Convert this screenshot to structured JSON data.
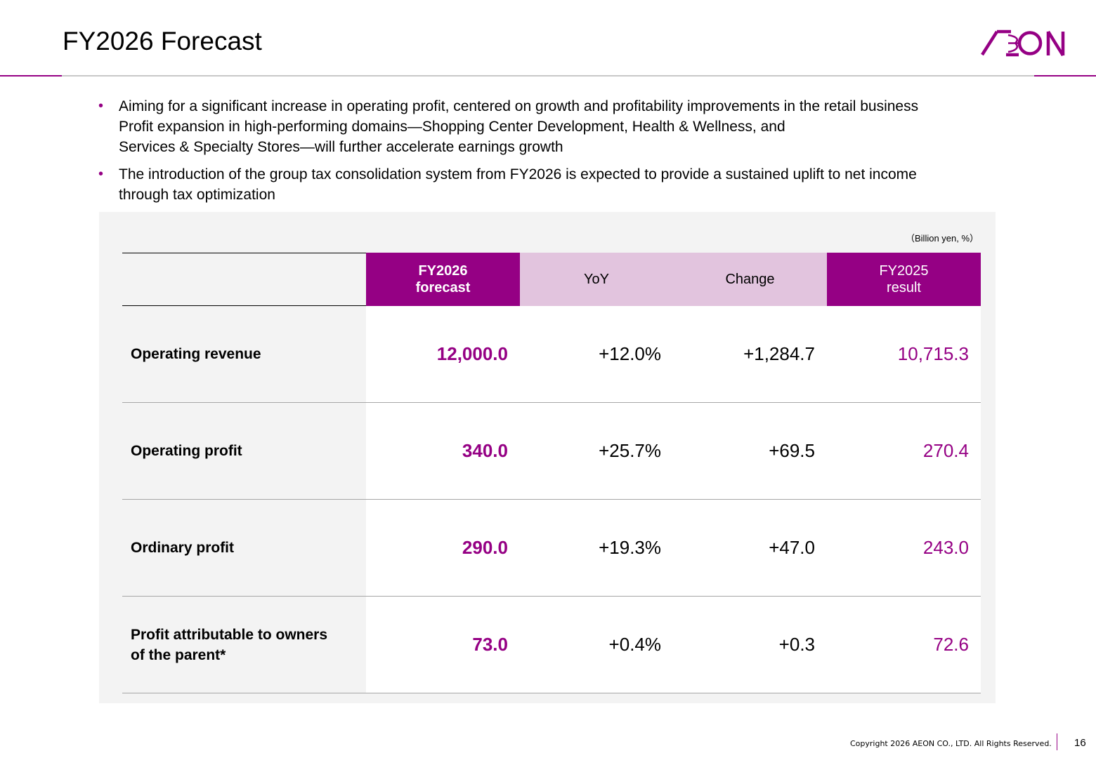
{
  "header": {
    "title": "FY2026 Forecast",
    "logo_text": "AEON",
    "brand_color": "#950084"
  },
  "bullets": [
    {
      "lines": [
        "Aiming for a significant increase in operating profit, centered on growth and profitability improvements in the retail business",
        "Profit expansion in high-performing domains—Shopping Center Development, Health & Wellness, and",
        "Services & Specialty Stores—will further accelerate earnings growth"
      ]
    },
    {
      "lines": [
        "The introduction of the group tax consolidation system from FY2026 is expected to provide a sustained uplift to net income",
        "through tax optimization"
      ]
    }
  ],
  "table": {
    "unit_note": "（Billion yen, %）",
    "headers": {
      "forecast": [
        "FY2026",
        "forecast"
      ],
      "yoy": "YoY",
      "change": "Change",
      "result": [
        "FY2025",
        "result"
      ]
    },
    "rows": [
      {
        "label": [
          "Operating revenue"
        ],
        "forecast": "12,000.0",
        "yoy": "+12.0%",
        "change": "+1,284.7",
        "result": "10,715.3"
      },
      {
        "label": [
          "Operating profit"
        ],
        "forecast": "340.0",
        "yoy": "+25.7%",
        "change": "+69.5",
        "result": "270.4"
      },
      {
        "label": [
          "Ordinary profit"
        ],
        "forecast": "290.0",
        "yoy": "+19.3%",
        "change": "+47.0",
        "result": "243.0"
      },
      {
        "label": [
          "Profit attributable to owners",
          "of the parent*"
        ],
        "forecast": "73.0",
        "yoy": "+0.4%",
        "change": "+0.3",
        "result": "72.6"
      }
    ]
  },
  "footer": {
    "copyright": "Copyright 2026 AEON CO., LTD. All Rights Reserved.",
    "page_number": "16"
  }
}
